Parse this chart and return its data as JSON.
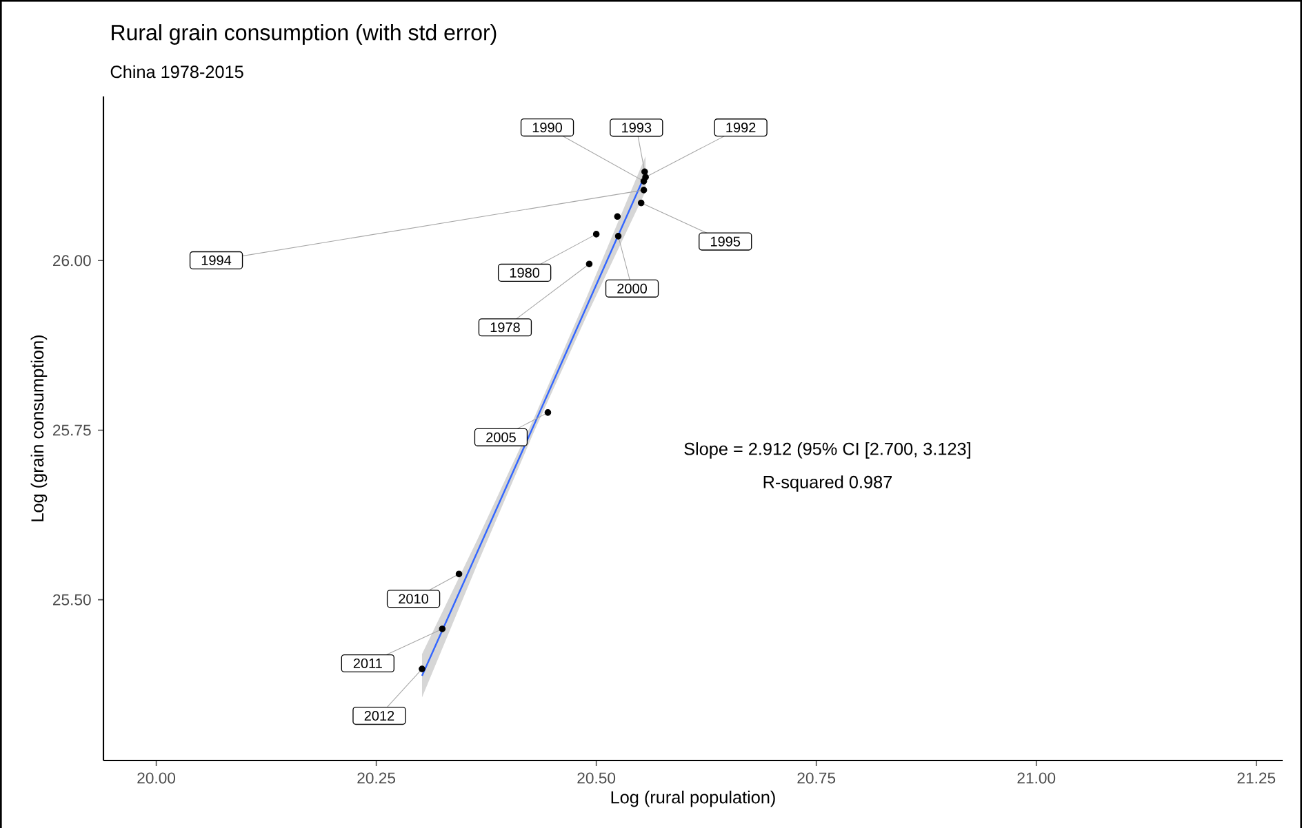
{
  "chart_data": {
    "type": "scatter",
    "title": "Rural grain consumption (with std error)",
    "subtitle": "China 1978-2015",
    "xlabel": "Log (rural population)",
    "ylabel": "Log (grain consumption)",
    "xlim": [
      19.94,
      21.28
    ],
    "ylim": [
      25.263,
      26.242
    ],
    "xticks": [
      {
        "value": 20,
        "label": "20.00"
      },
      {
        "value": 20.25,
        "label": "20.25"
      },
      {
        "value": 20.5,
        "label": "20.50"
      },
      {
        "value": 20.75,
        "label": "20.75"
      },
      {
        "value": 21,
        "label": "21.00"
      },
      {
        "value": 21.25,
        "label": "21.25"
      }
    ],
    "yticks": [
      {
        "value": 25.5,
        "label": "25.50"
      },
      {
        "value": 25.75,
        "label": "25.75"
      },
      {
        "value": 26,
        "label": "26.00"
      }
    ],
    "series": [
      {
        "type": "scatter",
        "color": "#000000",
        "marker": "circle",
        "x": [
          20.554,
          20.555,
          20.556,
          20.554,
          20.551,
          20.524,
          20.525,
          20.5,
          20.492,
          20.445,
          20.344,
          20.325,
          20.302
        ],
        "values": [
          26.117,
          26.131,
          26.123,
          26.104,
          26.085,
          26.065,
          26.036,
          26.039,
          25.995,
          25.776,
          25.538,
          25.457,
          25.398
        ]
      },
      {
        "type": "line",
        "color": "#3366ff",
        "marker": "none",
        "line_style": "solid",
        "x": [
          20.302,
          20.365,
          20.43,
          20.49,
          20.556
        ],
        "values": [
          25.388,
          25.571,
          25.76,
          25.935,
          26.128
        ],
        "lower": [
          25.356,
          25.553,
          25.75,
          25.921,
          26.102
        ],
        "upper": [
          25.42,
          25.589,
          25.77,
          25.949,
          26.154
        ]
      }
    ],
    "annotations": [
      {
        "text": "1990",
        "x": 20.554,
        "y": 26.117
      },
      {
        "text": "1993",
        "x": 20.555,
        "y": 26.131
      },
      {
        "text": "1992",
        "x": 20.556,
        "y": 26.123
      },
      {
        "text": "1994",
        "x": 20.554,
        "y": 26.104
      },
      {
        "text": "1995",
        "x": 20.551,
        "y": 26.085
      },
      {
        "text": "1980",
        "x": 20.5,
        "y": 26.039
      },
      {
        "text": "1978",
        "x": 20.492,
        "y": 25.995
      },
      {
        "text": "2000",
        "x": 20.525,
        "y": 26.036
      },
      {
        "text": "2005",
        "x": 20.445,
        "y": 25.776
      },
      {
        "text": "2010",
        "x": 20.344,
        "y": 25.538
      },
      {
        "text": "2011",
        "x": 20.325,
        "y": 25.457
      },
      {
        "text": "2012",
        "x": 20.302,
        "y": 25.398
      },
      "Slope = 2.912 (95% CI [2.700, 3.123]",
      "R-squared 0.987"
    ]
  }
}
